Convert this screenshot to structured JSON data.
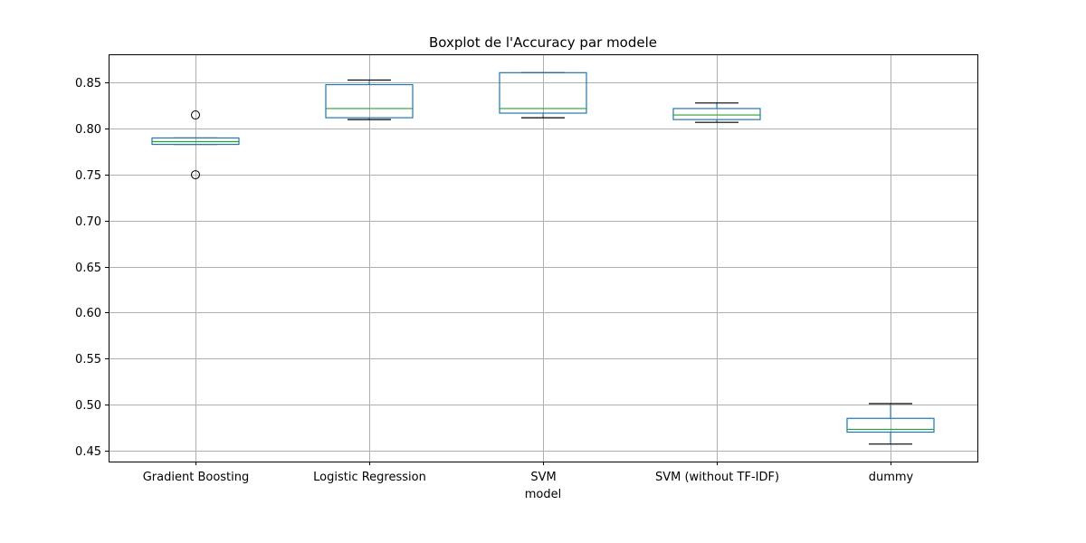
{
  "chart_data": {
    "type": "boxplot",
    "title": "Boxplot de l'Accuracy par modele",
    "xlabel": "model",
    "ylabel": "",
    "ylim": [
      0.438,
      0.881
    ],
    "yticks": [
      "0.45",
      "0.50",
      "0.55",
      "0.60",
      "0.65",
      "0.70",
      "0.75",
      "0.80",
      "0.85"
    ],
    "grid": true,
    "colors": {
      "box": "#1f77b4",
      "median": "#2ca02c",
      "whisker_cap": "#000000",
      "grid": "#b0b0b0",
      "flier": "#000000"
    },
    "categories": [
      "Gradient Boosting",
      "Logistic Regression",
      "SVM",
      "SVM (without TF-IDF)",
      "dummy"
    ],
    "boxes": [
      {
        "name": "Gradient Boosting",
        "whisker_low": 0.783,
        "q1": 0.783,
        "median": 0.786,
        "q3": 0.79,
        "whisker_high": 0.79,
        "outliers": [
          0.815,
          0.75
        ]
      },
      {
        "name": "Logistic Regression",
        "whisker_low": 0.81,
        "q1": 0.812,
        "median": 0.822,
        "q3": 0.848,
        "whisker_high": 0.853,
        "outliers": []
      },
      {
        "name": "SVM",
        "whisker_low": 0.812,
        "q1": 0.817,
        "median": 0.822,
        "q3": 0.861,
        "whisker_high": 0.861,
        "outliers": []
      },
      {
        "name": "SVM (without TF-IDF)",
        "whisker_low": 0.807,
        "q1": 0.81,
        "median": 0.815,
        "q3": 0.822,
        "whisker_high": 0.828,
        "outliers": []
      },
      {
        "name": "dummy",
        "whisker_low": 0.457,
        "q1": 0.47,
        "median": 0.473,
        "q3": 0.485,
        "whisker_high": 0.501,
        "outliers": []
      }
    ]
  }
}
